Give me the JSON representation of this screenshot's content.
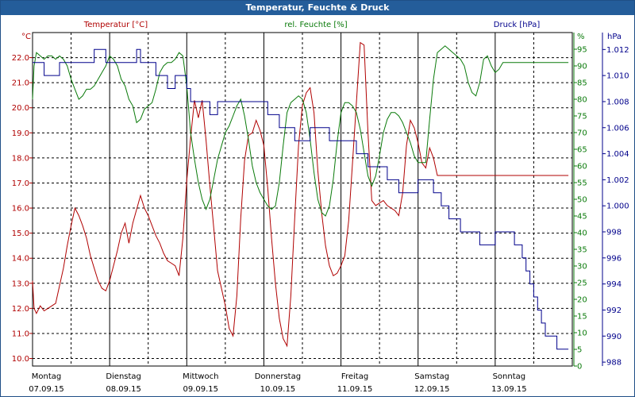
{
  "window": {
    "title": "Temperatur, Feuchte & Druck"
  },
  "chart_data": {
    "type": "line",
    "title": "Temperatur, Feuchte & Druck",
    "grid": true,
    "colors": {
      "temperature": "#b00000",
      "humidity": "#0a7a0a",
      "pressure": "#00008b",
      "axis": "#000000",
      "grid": "#000000"
    },
    "x_range": [
      0,
      7
    ],
    "x_unit": "days since Montag 07.09.15 00:00",
    "day_labels": [
      {
        "day": "Montag",
        "date": "07.09.15"
      },
      {
        "day": "Dienstag",
        "date": "08.09.15"
      },
      {
        "day": "Mittwoch",
        "date": "09.09.15"
      },
      {
        "day": "Donnerstag",
        "date": "10.09.15"
      },
      {
        "day": "Freitag",
        "date": "11.09.15"
      },
      {
        "day": "Samstag",
        "date": "12.09.15"
      },
      {
        "day": "Sonntag",
        "date": "13.09.15"
      }
    ],
    "axes": {
      "temperature": {
        "label": "Temperatur [°C]",
        "unit": "°C",
        "range": [
          9.7,
          23.0
        ],
        "ticks": [
          "22.0",
          "21.0",
          "20.0",
          "19.0",
          "18.0",
          "17.0",
          "16.0",
          "15.0",
          "14.0",
          "13.0",
          "12.0",
          "11.0",
          "10.0"
        ]
      },
      "humidity": {
        "label": "rel. Feuchte [%]",
        "unit": "%",
        "range": [
          0,
          100
        ],
        "ticks": [
          "0",
          "5",
          "10",
          "15",
          "20",
          "25",
          "30",
          "35",
          "40",
          "45",
          "50",
          "55",
          "60",
          "65",
          "70",
          "75",
          "80",
          "85",
          "90",
          "95"
        ]
      },
      "pressure": {
        "label": "Druck [hPa]",
        "unit": "hPa",
        "range": [
          987.7,
          1013.3
        ],
        "ticks": [
          "1.012",
          "1.010",
          "1.008",
          "1.006",
          "1.004",
          "1.002",
          "1.000",
          "998",
          "996",
          "994",
          "992",
          "990",
          "988"
        ]
      }
    },
    "series": [
      {
        "name": "Temperatur",
        "axis": "temperature",
        "step": false,
        "x": [
          0,
          0.02,
          0.05,
          0.1,
          0.15,
          0.2,
          0.25,
          0.3,
          0.35,
          0.4,
          0.45,
          0.5,
          0.55,
          0.6,
          0.65,
          0.7,
          0.75,
          0.8,
          0.85,
          0.9,
          0.95,
          1.0,
          1.05,
          1.1,
          1.15,
          1.2,
          1.25,
          1.3,
          1.4,
          1.45,
          1.5,
          1.6,
          1.65,
          1.7,
          1.75,
          1.8,
          1.85,
          1.9,
          1.95,
          2.0,
          2.05,
          2.1,
          2.15,
          2.2,
          2.25,
          2.3,
          2.35,
          2.4,
          2.45,
          2.5,
          2.55,
          2.6,
          2.65,
          2.7,
          2.75,
          2.8,
          2.85,
          2.9,
          2.95,
          3.0,
          3.05,
          3.1,
          3.15,
          3.2,
          3.25,
          3.3,
          3.35,
          3.4,
          3.45,
          3.5,
          3.55,
          3.6,
          3.65,
          3.7,
          3.75,
          3.8,
          3.85,
          3.9,
          3.95,
          4.0,
          4.05,
          4.1,
          4.15,
          4.2,
          4.25,
          4.3,
          4.35,
          4.4,
          4.45,
          4.5,
          4.55,
          4.6,
          4.65,
          4.7,
          4.75,
          4.8,
          4.85,
          4.9,
          4.95,
          5.0,
          5.05,
          5.1,
          5.15,
          5.2,
          5.25,
          5.3,
          5.35,
          5.4,
          5.45,
          5.5,
          5.55,
          5.6,
          5.65,
          5.7,
          5.75,
          5.8,
          5.85,
          5.9,
          5.95,
          6.0,
          6.05,
          6.1,
          6.15,
          6.2,
          6.25,
          6.3,
          6.35,
          6.4,
          6.45,
          6.5,
          6.55,
          6.6,
          6.65,
          6.7,
          6.75,
          6.8,
          6.85,
          6.9,
          6.95
        ],
        "values": [
          13.1,
          12.0,
          11.8,
          12.1,
          11.9,
          12.0,
          12.1,
          12.2,
          12.9,
          13.6,
          14.5,
          15.3,
          16.0,
          15.7,
          15.3,
          14.8,
          14.1,
          13.6,
          13.1,
          12.8,
          12.7,
          13.1,
          13.7,
          14.3,
          15.0,
          15.4,
          14.6,
          15.4,
          16.5,
          16.0,
          15.7,
          14.9,
          14.6,
          14.2,
          13.9,
          13.8,
          13.7,
          13.3,
          14.8,
          17.1,
          18.8,
          20.3,
          19.6,
          20.3,
          18.7,
          16.9,
          15.2,
          13.5,
          12.8,
          12.1,
          11.2,
          10.9,
          12.5,
          15.6,
          17.9,
          18.9,
          19.0,
          19.5,
          19.1,
          18.5,
          16.8,
          14.8,
          13.0,
          11.6,
          10.8,
          10.5,
          12.5,
          15.6,
          18.5,
          20.1,
          20.6,
          20.8,
          19.8,
          17.5,
          15.8,
          14.5,
          13.7,
          13.3,
          13.4,
          13.7,
          14.1,
          15.5,
          17.8,
          20.2,
          22.6,
          22.5,
          19.0,
          16.3,
          16.1,
          16.2,
          16.3,
          16.1,
          16.0,
          15.9,
          15.7,
          16.6,
          18.5,
          19.5,
          19.2,
          18.6,
          17.8,
          17.6,
          18.4,
          18.0,
          17.3,
          17.3,
          17.3,
          17.3,
          17.3,
          17.3,
          17.3,
          17.3,
          17.3,
          17.3,
          17.3,
          17.3,
          17.3,
          17.3,
          17.3,
          17.3,
          17.3,
          17.3,
          17.3,
          17.3,
          17.3,
          17.3,
          17.3,
          17.3,
          17.3,
          17.3,
          17.3,
          17.3,
          17.3,
          17.3,
          17.3,
          17.3,
          17.3,
          17.3,
          17.3
        ]
      },
      {
        "name": "rel. Feuchte",
        "axis": "humidity",
        "step": false,
        "x": [
          0,
          0.02,
          0.05,
          0.1,
          0.15,
          0.2,
          0.25,
          0.3,
          0.35,
          0.4,
          0.45,
          0.5,
          0.55,
          0.6,
          0.65,
          0.7,
          0.75,
          0.8,
          0.85,
          0.9,
          0.95,
          1.0,
          1.05,
          1.1,
          1.15,
          1.2,
          1.25,
          1.3,
          1.35,
          1.4,
          1.45,
          1.5,
          1.55,
          1.6,
          1.65,
          1.7,
          1.75,
          1.8,
          1.85,
          1.9,
          1.95,
          2.0,
          2.05,
          2.1,
          2.15,
          2.2,
          2.25,
          2.3,
          2.35,
          2.4,
          2.45,
          2.5,
          2.55,
          2.6,
          2.65,
          2.7,
          2.75,
          2.8,
          2.85,
          2.9,
          2.95,
          3.0,
          3.05,
          3.1,
          3.15,
          3.2,
          3.25,
          3.3,
          3.35,
          3.4,
          3.45,
          3.5,
          3.55,
          3.6,
          3.65,
          3.7,
          3.75,
          3.8,
          3.85,
          3.9,
          3.95,
          4.0,
          4.05,
          4.1,
          4.15,
          4.2,
          4.25,
          4.3,
          4.35,
          4.4,
          4.45,
          4.5,
          4.55,
          4.6,
          4.65,
          4.7,
          4.75,
          4.8,
          4.85,
          4.9,
          4.95,
          5.0,
          5.05,
          5.1,
          5.15,
          5.2,
          5.25,
          5.3,
          5.35,
          5.4,
          5.45,
          5.5,
          5.55,
          5.6,
          5.65,
          5.7,
          5.75,
          5.8,
          5.85,
          5.9,
          5.95,
          6.0,
          6.05,
          6.1,
          6.15,
          6.2,
          6.25,
          6.3,
          6.35,
          6.4,
          6.45,
          6.5,
          6.55,
          6.6,
          6.65,
          6.7,
          6.75,
          6.8,
          6.85,
          6.9,
          6.95
        ],
        "values": [
          80,
          90,
          94,
          93,
          92,
          93,
          93,
          92,
          93,
          92,
          90,
          86,
          83,
          80,
          81,
          83,
          83,
          84,
          86,
          88,
          90,
          93,
          92,
          90,
          86,
          84,
          80,
          78,
          73,
          74,
          77,
          78,
          79,
          83,
          88,
          90,
          91,
          91,
          92,
          94,
          93,
          84,
          70,
          62,
          55,
          50,
          47,
          50,
          56,
          62,
          66,
          70,
          72,
          75,
          78,
          80,
          75,
          68,
          60,
          55,
          52,
          50,
          48,
          47,
          48,
          55,
          66,
          76,
          79,
          80,
          81,
          80,
          76,
          68,
          58,
          50,
          46,
          45,
          48,
          56,
          67,
          76,
          79,
          79,
          78,
          76,
          71,
          64,
          57,
          54,
          57,
          63,
          70,
          74,
          76,
          76,
          75,
          73,
          70,
          67,
          63,
          61,
          61,
          61,
          74,
          86,
          94,
          95,
          96,
          95,
          94,
          93,
          92,
          90,
          85,
          82,
          81,
          85,
          92,
          93,
          90,
          88,
          89,
          91,
          91,
          91,
          91,
          91,
          91,
          91,
          91,
          91,
          91,
          91,
          91,
          91,
          91,
          91,
          91,
          91,
          91
        ]
      },
      {
        "name": "Druck",
        "axis": "pressure",
        "step": true,
        "x": [
          0,
          0.15,
          0.35,
          0.55,
          0.8,
          0.95,
          1.35,
          1.4,
          1.5,
          1.6,
          1.75,
          1.85,
          2.0,
          2.05,
          2.25,
          2.3,
          2.35,
          2.4,
          2.6,
          2.9,
          3.05,
          3.2,
          3.4,
          3.6,
          3.75,
          3.85,
          4.0,
          4.2,
          4.35,
          4.6,
          4.75,
          4.85,
          5.0,
          5.2,
          5.3,
          5.4,
          5.5,
          5.55,
          5.6,
          5.7,
          5.8,
          5.9,
          6.0,
          6.05,
          6.1,
          6.15,
          6.2,
          6.25,
          6.3,
          6.35,
          6.4,
          6.45,
          6.5,
          6.55,
          6.6,
          6.65,
          6.7,
          6.75,
          6.8,
          6.85,
          6.9,
          6.95
        ],
        "values": [
          1.011,
          1.01,
          1.011,
          1.011,
          1.012,
          1.011,
          1.012,
          1.011,
          1.011,
          1.01,
          1.009,
          1.01,
          1.009,
          1.008,
          1.008,
          1.007,
          1.007,
          1.008,
          1.008,
          1.008,
          1.007,
          1.006,
          1.005,
          1.006,
          1.006,
          1.005,
          1.005,
          1.004,
          1.003,
          1.002,
          1.001,
          1.001,
          1.002,
          1.001,
          1.0,
          999,
          999,
          998,
          998,
          998,
          997,
          997,
          998,
          998,
          998,
          998,
          998,
          997,
          997,
          996,
          995,
          994,
          993,
          992,
          991,
          990,
          990,
          990,
          989,
          989,
          989,
          989
        ]
      }
    ]
  }
}
